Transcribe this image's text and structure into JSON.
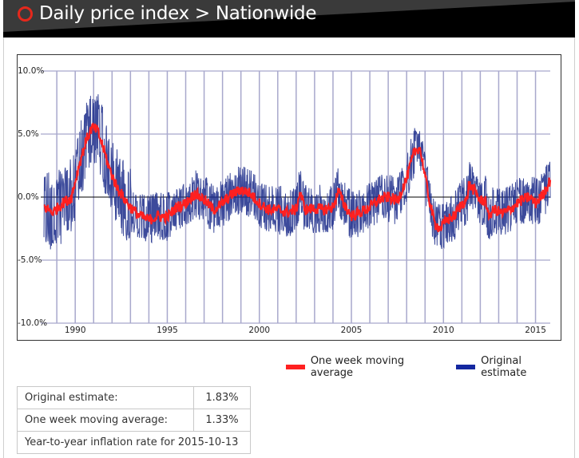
{
  "header": {
    "title": "Daily price index > Nationwide",
    "icon": "circle-icon"
  },
  "legend": [
    {
      "label": "One week moving average",
      "color": "#ff2020"
    },
    {
      "label": "Original estimate",
      "color": "#1428a0"
    }
  ],
  "summary": {
    "rows": [
      {
        "label": "Original estimate:",
        "value": "1.83%"
      },
      {
        "label": "One week moving average:",
        "value": "1.33%"
      }
    ],
    "footer": "Year-to-year inflation rate for 2015-10-13"
  },
  "chart_data": {
    "type": "line",
    "title": "Daily price index > Nationwide",
    "xlabel": "",
    "ylabel": "",
    "x_range": [
      1988.3,
      2015.8
    ],
    "ylim": [
      -10,
      10
    ],
    "y_ticks": [
      "10.0%",
      "5.0%",
      "0.0%",
      "-5.0%",
      "-10.0%"
    ],
    "y_tick_values": [
      10,
      5,
      0,
      -5,
      -10
    ],
    "x_tick_labels": [
      "1990",
      "1995",
      "2000",
      "2005",
      "2010",
      "2015"
    ],
    "x_tick_values": [
      1990,
      1995,
      2000,
      2005,
      2010,
      2015
    ],
    "grid": true,
    "legend_position": "bottom-right",
    "series": [
      {
        "name": "One week moving average",
        "color": "#ff2020",
        "x": [
          1988.3,
          1988.8,
          1989.3,
          1989.8,
          1990.2,
          1990.6,
          1990.9,
          1991.2,
          1991.5,
          1991.8,
          1992.2,
          1992.6,
          1993.0,
          1993.5,
          1994.0,
          1994.5,
          1995.0,
          1995.5,
          1996.0,
          1996.5,
          1997.0,
          1997.5,
          1998.0,
          1998.5,
          1999.0,
          1999.5,
          2000.0,
          2000.5,
          2001.0,
          2001.5,
          2002.0,
          2002.2,
          2002.5,
          2003.0,
          2003.5,
          2004.0,
          2004.3,
          2004.6,
          2005.0,
          2005.5,
          2006.0,
          2006.5,
          2007.0,
          2007.5,
          2008.0,
          2008.4,
          2008.7,
          2008.9,
          2009.2,
          2009.5,
          2009.8,
          2010.2,
          2010.6,
          2011.0,
          2011.3,
          2011.35,
          2011.7,
          2012.0,
          2012.3,
          2012.4,
          2012.8,
          2013.2,
          2013.6,
          2014.0,
          2014.3,
          2014.7,
          2015.0,
          2015.4,
          2015.8
        ],
        "values": [
          -0.8,
          -1.2,
          -0.5,
          0.0,
          2.5,
          4.5,
          5.5,
          5.3,
          4.0,
          2.5,
          1.0,
          0.0,
          -0.8,
          -1.5,
          -1.8,
          -1.5,
          -1.6,
          -0.8,
          -0.5,
          0.3,
          -0.2,
          -1.0,
          -0.5,
          0.2,
          0.6,
          0.3,
          -0.5,
          -1.0,
          -1.0,
          -1.2,
          -1.0,
          0.4,
          -1.0,
          -0.9,
          -1.0,
          -0.8,
          0.5,
          -0.6,
          -1.5,
          -1.2,
          -0.8,
          -0.2,
          0.0,
          -0.3,
          1.5,
          3.5,
          4.0,
          2.5,
          0.0,
          -2.0,
          -2.5,
          -1.8,
          -1.5,
          -0.5,
          -0.2,
          1.0,
          0.5,
          -0.3,
          -0.2,
          -1.5,
          -1.0,
          -1.3,
          -1.0,
          -0.5,
          -0.2,
          0.0,
          -0.5,
          0.2,
          1.33
        ]
      },
      {
        "name": "Original estimate",
        "color": "#1428a0",
        "note": "Daily values; noisy band roughly +/-1.5 percentage points around the moving average",
        "band_halfwidth": 1.5,
        "last_value": 1.83
      }
    ]
  }
}
